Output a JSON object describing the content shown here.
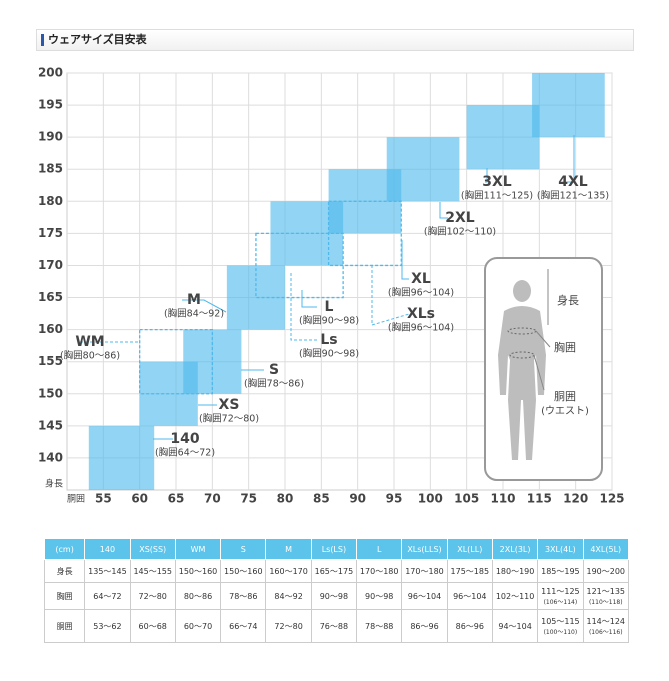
{
  "header": {
    "title": "ウェアサイズ目安表"
  },
  "chart_data": {
    "type": "range-box",
    "x_label": "胴囲",
    "y_label": "身長",
    "xlim": [
      50,
      125
    ],
    "xticks": [
      55,
      60,
      65,
      70,
      75,
      80,
      85,
      90,
      95,
      100,
      105,
      110,
      115,
      120,
      125
    ],
    "ylim": [
      135,
      200
    ],
    "yticks": [
      140,
      145,
      150,
      155,
      160,
      165,
      170,
      175,
      180,
      185,
      190,
      195,
      200
    ],
    "grid": true,
    "color": "#4fb9ec",
    "series": [
      {
        "name": "140",
        "note": "(胸囲64～72)",
        "waist": [
          53,
          62
        ],
        "height": [
          135,
          145
        ],
        "dashed": false
      },
      {
        "name": "XS",
        "note": "(胸囲72～80)",
        "waist": [
          60,
          68
        ],
        "height": [
          145,
          155
        ],
        "dashed": false
      },
      {
        "name": "WM",
        "note": "(胸囲80～86)",
        "waist": [
          60,
          70
        ],
        "height": [
          150,
          160
        ],
        "dashed": true
      },
      {
        "name": "S",
        "note": "(胸囲78～86)",
        "waist": [
          66,
          74
        ],
        "height": [
          150,
          160
        ],
        "dashed": false
      },
      {
        "name": "M",
        "note": "(胸囲84～92)",
        "waist": [
          72,
          80
        ],
        "height": [
          160,
          170
        ],
        "dashed": false
      },
      {
        "name": "Ls",
        "note": "(胸囲90～98)",
        "waist": [
          76,
          88
        ],
        "height": [
          165,
          175
        ],
        "dashed": true
      },
      {
        "name": "L",
        "note": "(胸囲90～98)",
        "waist": [
          78,
          88
        ],
        "height": [
          170,
          180
        ],
        "dashed": false
      },
      {
        "name": "XLs",
        "note": "(胸囲96～104)",
        "waist": [
          86,
          96
        ],
        "height": [
          170,
          180
        ],
        "dashed": true
      },
      {
        "name": "XL",
        "note": "(胸囲96～104)",
        "waist": [
          86,
          96
        ],
        "height": [
          175,
          185
        ],
        "dashed": false
      },
      {
        "name": "2XL",
        "note": "(胸囲102～110)",
        "waist": [
          94,
          104
        ],
        "height": [
          180,
          190
        ],
        "dashed": false
      },
      {
        "name": "3XL",
        "note": "(胸囲111～125)",
        "waist": [
          105,
          115
        ],
        "height": [
          185,
          195
        ],
        "dashed": false
      },
      {
        "name": "4XL",
        "note": "(胸囲121～135)",
        "waist": [
          114,
          124
        ],
        "height": [
          190,
          200
        ],
        "dashed": false
      }
    ]
  },
  "figure_labels": [
    "身長",
    "胸囲",
    "胴囲",
    "(ウエスト)"
  ],
  "table": {
    "header": [
      "(cm)",
      "140",
      "XS(SS)",
      "WM",
      "S",
      "M",
      "Ls(LS)",
      "L",
      "XLs(LLS)",
      "XL(LL)",
      "2XL(3L)",
      "3XL(4L)",
      "4XL(5L)"
    ],
    "rows": [
      [
        "身長",
        "135～145",
        "145～155",
        "150～160",
        "150～160",
        "160～170",
        "165～175",
        "170～180",
        "170～180",
        "175～185",
        "180～190",
        "185～195",
        "190～200"
      ],
      [
        "胸囲",
        "64～72",
        "72～80",
        "80～86",
        "78～86",
        "84～92",
        "90～98",
        "90～98",
        "96～104",
        "96～104",
        "102～110",
        [
          "111～125",
          "(106～114)"
        ],
        [
          "121～135",
          "(110～118)"
        ]
      ],
      [
        "胴囲",
        "53～62",
        "60～68",
        "60～70",
        "66～74",
        "72～80",
        "76～88",
        "78～88",
        "86～96",
        "86～96",
        "94～104",
        [
          "105～115",
          "(100～110)"
        ],
        [
          "114～124",
          "(106～116)"
        ]
      ]
    ]
  }
}
